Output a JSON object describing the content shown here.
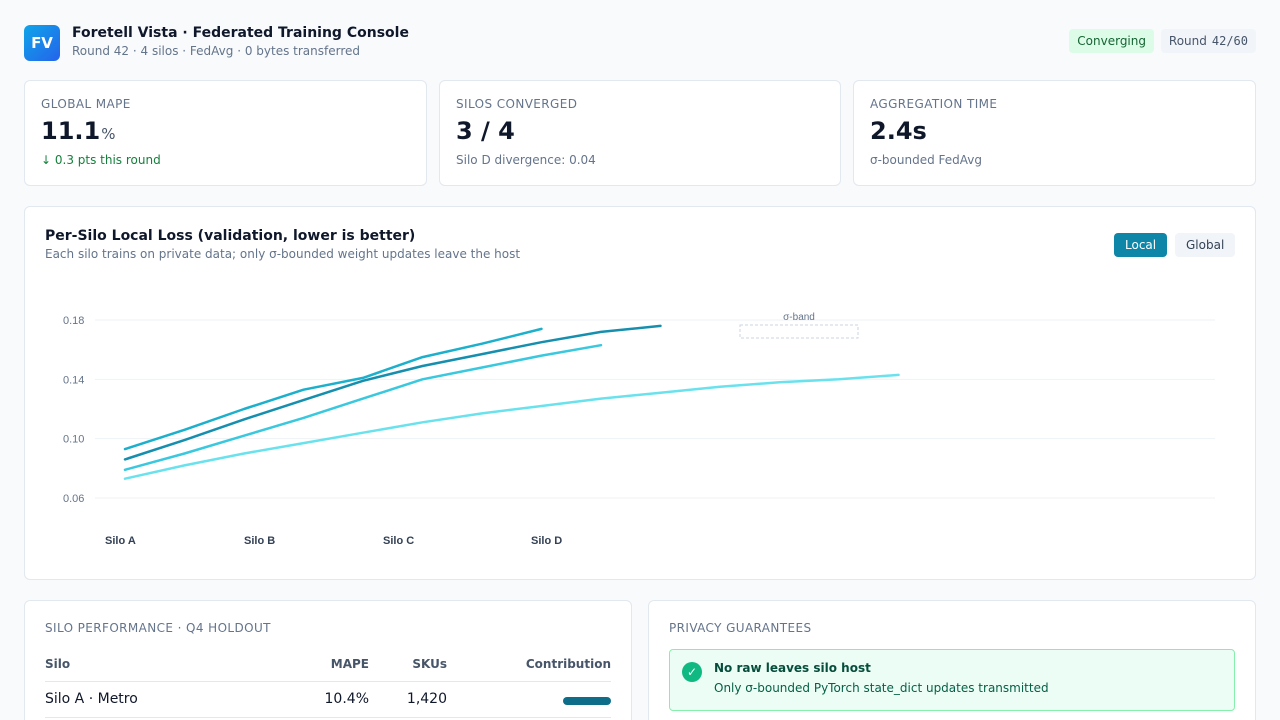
{
  "header": {
    "logo": "FV",
    "title": "Foretell Vista · Federated Training Console",
    "subtitle": "Round 42 · 4 silos · FedAvg · 0 bytes transferred",
    "status": "Converging",
    "round_label": "Round",
    "round_value": "42/60"
  },
  "kpis": [
    {
      "label": "Global MAPE",
      "value": "11.1",
      "unit": "%",
      "note": "↓ 0.3 pts this round"
    },
    {
      "label": "Silos Converged",
      "value": "3 / 4",
      "note": "Silo D divergence: 0.04"
    },
    {
      "label": "Aggregation Time",
      "value": "2.4s",
      "note": "σ-bounded FedAvg"
    }
  ],
  "chart_panel": {
    "title": "Per-Silo Local Loss (validation, lower is better)",
    "subtitle": "Each silo trains on private data; only σ-bounded weight updates leave the host",
    "toggle_local": "Local",
    "toggle_global": "Global",
    "band_label": "σ-band"
  },
  "chart_data": {
    "type": "line",
    "y_ticks": [
      "0.18",
      "0.14",
      "0.10",
      "0.06"
    ],
    "ylim": [
      0.06,
      0.18
    ],
    "x_labels": [
      "Silo A",
      "Silo B",
      "Silo C",
      "Silo D"
    ],
    "grid": true,
    "series": [
      {
        "color": "#1cb0cc",
        "values": [
          0.093,
          0.106,
          0.12,
          0.133,
          0.141,
          0.155,
          0.164,
          0.174
        ]
      },
      {
        "color": "#168fae",
        "values": [
          0.086,
          0.099,
          0.113,
          0.126,
          0.139,
          0.149,
          0.157,
          0.165,
          0.172,
          0.176
        ]
      },
      {
        "color": "#3ac8de",
        "values": [
          0.079,
          0.09,
          0.102,
          0.114,
          0.127,
          0.14,
          0.148,
          0.156,
          0.163
        ]
      },
      {
        "color": "#6ae2ee",
        "values": [
          0.073,
          0.082,
          0.09,
          0.097,
          0.104,
          0.111,
          0.117,
          0.122,
          0.127,
          0.131,
          0.135,
          0.138,
          0.14,
          0.143
        ]
      }
    ]
  },
  "silo_table": {
    "title": "Silo Performance · Q4 Holdout",
    "headers": {
      "silo": "Silo",
      "mape": "MAPE",
      "skus": "SKUs",
      "contribution": "Contribution"
    },
    "rows": [
      {
        "silo": "Silo A · Metro",
        "mape": "10.4%",
        "skus": "1,420"
      }
    ]
  },
  "privacy": {
    "title": "Privacy Guarantees",
    "items": [
      {
        "title": "No raw leaves silo host",
        "desc": "Only σ-bounded PyTorch state_dict updates transmitted"
      }
    ]
  }
}
